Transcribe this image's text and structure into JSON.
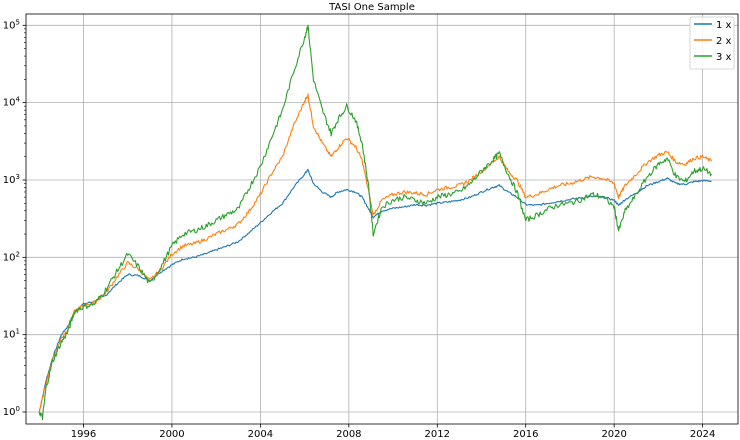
{
  "chart_data": {
    "type": "line",
    "title": "TASI One Sample",
    "xlabel": "",
    "ylabel": "",
    "yscale": "log",
    "grid": true,
    "legend_position": "top-right",
    "xlim": [
      1993.4,
      2025.6
    ],
    "ylim": [
      0.7,
      140000
    ],
    "x_ticks": [
      1996,
      2000,
      2004,
      2008,
      2012,
      2016,
      2020,
      2024
    ],
    "x_tick_labels": [
      "1996",
      "2000",
      "2004",
      "2008",
      "2012",
      "2016",
      "2020",
      "2024"
    ],
    "y_ticks": [
      1,
      10,
      100,
      1000,
      10000,
      100000
    ],
    "y_tick_labels": [
      {
        "base": "10",
        "exp": "0"
      },
      {
        "base": "10",
        "exp": "1"
      },
      {
        "base": "10",
        "exp": "2"
      },
      {
        "base": "10",
        "exp": "3"
      },
      {
        "base": "10",
        "exp": "4"
      },
      {
        "base": "10",
        "exp": "5"
      }
    ],
    "series": [
      {
        "name": "1 x",
        "color": "#1f77b4",
        "points": [
          [
            1994.0,
            1.0
          ],
          [
            1994.3,
            2.5
          ],
          [
            1994.6,
            5
          ],
          [
            1995.0,
            10
          ],
          [
            1995.3,
            13
          ],
          [
            1995.6,
            20
          ],
          [
            1996.0,
            25
          ],
          [
            1996.5,
            27
          ],
          [
            1997.0,
            32
          ],
          [
            1997.5,
            45
          ],
          [
            1998.0,
            60
          ],
          [
            1998.5,
            58
          ],
          [
            1999.0,
            50
          ],
          [
            1999.5,
            65
          ],
          [
            2000.0,
            80
          ],
          [
            2000.5,
            95
          ],
          [
            2001.0,
            100
          ],
          [
            2001.5,
            110
          ],
          [
            2002.0,
            125
          ],
          [
            2002.5,
            140
          ],
          [
            2003.0,
            160
          ],
          [
            2003.5,
            210
          ],
          [
            2004.0,
            280
          ],
          [
            2004.5,
            380
          ],
          [
            2005.0,
            500
          ],
          [
            2005.5,
            800
          ],
          [
            2006.0,
            1200
          ],
          [
            2006.15,
            1350
          ],
          [
            2006.4,
            900
          ],
          [
            2006.8,
            700
          ],
          [
            2007.2,
            600
          ],
          [
            2007.5,
            700
          ],
          [
            2007.9,
            750
          ],
          [
            2008.3,
            700
          ],
          [
            2008.6,
            600
          ],
          [
            2008.9,
            420
          ],
          [
            2009.1,
            330
          ],
          [
            2009.5,
            400
          ],
          [
            2010.0,
            430
          ],
          [
            2010.5,
            450
          ],
          [
            2011.0,
            480
          ],
          [
            2011.5,
            470
          ],
          [
            2012.0,
            500
          ],
          [
            2012.5,
            520
          ],
          [
            2013.0,
            550
          ],
          [
            2013.5,
            600
          ],
          [
            2014.0,
            700
          ],
          [
            2014.5,
            800
          ],
          [
            2014.8,
            850
          ],
          [
            2015.2,
            700
          ],
          [
            2015.6,
            600
          ],
          [
            2016.0,
            480
          ],
          [
            2016.5,
            470
          ],
          [
            2017.0,
            500
          ],
          [
            2017.5,
            530
          ],
          [
            2018.0,
            560
          ],
          [
            2018.5,
            590
          ],
          [
            2019.0,
            610
          ],
          [
            2019.5,
            600
          ],
          [
            2020.0,
            550
          ],
          [
            2020.2,
            470
          ],
          [
            2020.5,
            560
          ],
          [
            2021.0,
            680
          ],
          [
            2021.5,
            850
          ],
          [
            2022.0,
            950
          ],
          [
            2022.4,
            1050
          ],
          [
            2022.8,
            900
          ],
          [
            2023.2,
            880
          ],
          [
            2023.6,
            950
          ],
          [
            2024.0,
            980
          ],
          [
            2024.4,
            970
          ]
        ]
      },
      {
        "name": "2 x",
        "color": "#ff7f0e",
        "points": [
          [
            1994.0,
            1.0
          ],
          [
            1994.3,
            2.3
          ],
          [
            1994.6,
            4.8
          ],
          [
            1995.0,
            9
          ],
          [
            1995.3,
            12
          ],
          [
            1995.6,
            20
          ],
          [
            1996.0,
            24
          ],
          [
            1996.5,
            26
          ],
          [
            1997.0,
            34
          ],
          [
            1997.5,
            55
          ],
          [
            1998.0,
            85
          ],
          [
            1998.5,
            70
          ],
          [
            1999.0,
            50
          ],
          [
            1999.5,
            70
          ],
          [
            2000.0,
            110
          ],
          [
            2000.5,
            140
          ],
          [
            2001.0,
            150
          ],
          [
            2001.5,
            170
          ],
          [
            2002.0,
            200
          ],
          [
            2002.5,
            230
          ],
          [
            2003.0,
            270
          ],
          [
            2003.5,
            400
          ],
          [
            2004.0,
            650
          ],
          [
            2004.5,
            1200
          ],
          [
            2005.0,
            2000
          ],
          [
            2005.5,
            5000
          ],
          [
            2006.0,
            10500
          ],
          [
            2006.15,
            12500
          ],
          [
            2006.4,
            5000
          ],
          [
            2006.8,
            3000
          ],
          [
            2007.2,
            2000
          ],
          [
            2007.5,
            2600
          ],
          [
            2007.9,
            3500
          ],
          [
            2008.3,
            2700
          ],
          [
            2008.6,
            1800
          ],
          [
            2008.9,
            700
          ],
          [
            2009.1,
            350
          ],
          [
            2009.5,
            550
          ],
          [
            2010.0,
            650
          ],
          [
            2010.5,
            700
          ],
          [
            2011.0,
            680
          ],
          [
            2011.5,
            650
          ],
          [
            2012.0,
            750
          ],
          [
            2012.5,
            800
          ],
          [
            2013.0,
            850
          ],
          [
            2013.5,
            1000
          ],
          [
            2014.0,
            1300
          ],
          [
            2014.5,
            1700
          ],
          [
            2014.8,
            2000
          ],
          [
            2015.2,
            1300
          ],
          [
            2015.6,
            1000
          ],
          [
            2016.0,
            600
          ],
          [
            2016.5,
            650
          ],
          [
            2017.0,
            750
          ],
          [
            2017.5,
            850
          ],
          [
            2018.0,
            900
          ],
          [
            2018.5,
            1000
          ],
          [
            2019.0,
            1100
          ],
          [
            2019.5,
            1050
          ],
          [
            2020.0,
            900
          ],
          [
            2020.2,
            600
          ],
          [
            2020.5,
            850
          ],
          [
            2021.0,
            1200
          ],
          [
            2021.5,
            1700
          ],
          [
            2022.0,
            2100
          ],
          [
            2022.4,
            2300
          ],
          [
            2022.8,
            1700
          ],
          [
            2023.2,
            1600
          ],
          [
            2023.6,
            1900
          ],
          [
            2024.0,
            2000
          ],
          [
            2024.4,
            1750
          ]
        ]
      },
      {
        "name": "3 x",
        "color": "#2ca02c",
        "points": [
          [
            1994.0,
            1.0
          ],
          [
            1994.15,
            0.85
          ],
          [
            1994.3,
            2.0
          ],
          [
            1994.6,
            4.5
          ],
          [
            1995.0,
            8
          ],
          [
            1995.3,
            11
          ],
          [
            1995.6,
            20
          ],
          [
            1996.0,
            23
          ],
          [
            1996.5,
            25
          ],
          [
            1997.0,
            38
          ],
          [
            1997.5,
            65
          ],
          [
            1998.0,
            110
          ],
          [
            1998.5,
            75
          ],
          [
            1999.0,
            45
          ],
          [
            1999.5,
            75
          ],
          [
            2000.0,
            140
          ],
          [
            2000.5,
            200
          ],
          [
            2001.0,
            220
          ],
          [
            2001.5,
            250
          ],
          [
            2002.0,
            300
          ],
          [
            2002.5,
            360
          ],
          [
            2003.0,
            420
          ],
          [
            2003.5,
            800
          ],
          [
            2004.0,
            1500
          ],
          [
            2004.5,
            3500
          ],
          [
            2005.0,
            8000
          ],
          [
            2005.5,
            25000
          ],
          [
            2006.0,
            70000
          ],
          [
            2006.15,
            100000
          ],
          [
            2006.4,
            20000
          ],
          [
            2006.8,
            8000
          ],
          [
            2007.2,
            4000
          ],
          [
            2007.5,
            6000
          ],
          [
            2007.9,
            9000
          ],
          [
            2008.3,
            6000
          ],
          [
            2008.6,
            3000
          ],
          [
            2008.9,
            800
          ],
          [
            2009.1,
            200
          ],
          [
            2009.5,
            450
          ],
          [
            2010.0,
            550
          ],
          [
            2010.5,
            600
          ],
          [
            2011.0,
            550
          ],
          [
            2011.5,
            500
          ],
          [
            2012.0,
            600
          ],
          [
            2012.5,
            650
          ],
          [
            2013.0,
            700
          ],
          [
            2013.5,
            900
          ],
          [
            2014.0,
            1300
          ],
          [
            2014.5,
            1800
          ],
          [
            2014.8,
            2200
          ],
          [
            2015.2,
            1200
          ],
          [
            2015.6,
            700
          ],
          [
            2016.0,
            300
          ],
          [
            2016.5,
            350
          ],
          [
            2017.0,
            420
          ],
          [
            2017.5,
            480
          ],
          [
            2018.0,
            500
          ],
          [
            2018.5,
            560
          ],
          [
            2019.0,
            650
          ],
          [
            2019.5,
            600
          ],
          [
            2020.0,
            450
          ],
          [
            2020.2,
            220
          ],
          [
            2020.5,
            400
          ],
          [
            2021.0,
            650
          ],
          [
            2021.5,
            1100
          ],
          [
            2022.0,
            1600
          ],
          [
            2022.4,
            1900
          ],
          [
            2022.8,
            1100
          ],
          [
            2023.2,
            950
          ],
          [
            2023.6,
            1300
          ],
          [
            2024.0,
            1400
          ],
          [
            2024.4,
            1200
          ]
        ]
      }
    ]
  }
}
